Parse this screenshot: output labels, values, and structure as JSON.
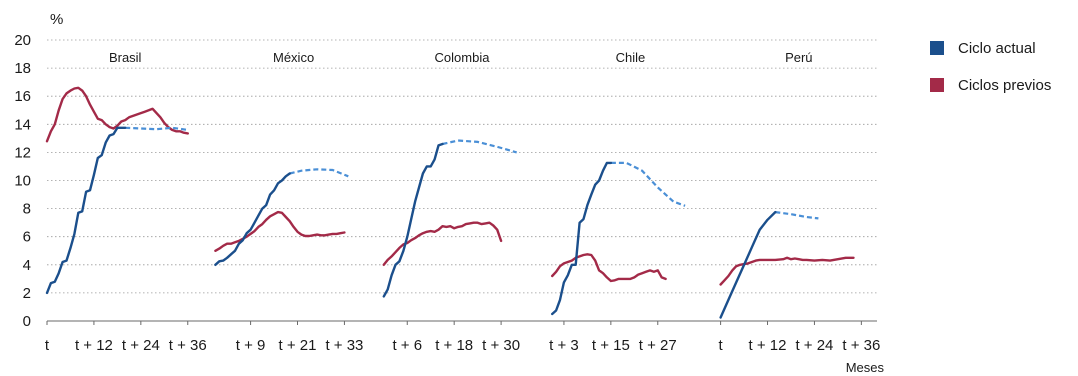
{
  "chart_data": {
    "type": "line",
    "ylabel": "%",
    "xlabel": "Meses",
    "ylim": [
      0,
      20
    ],
    "yticks": [
      "0",
      "2",
      "4",
      "6",
      "8",
      "10",
      "12",
      "14",
      "16",
      "18",
      "20"
    ],
    "grid": "horizontal",
    "legend": {
      "placement": "right",
      "entries": [
        {
          "label": "Ciclo actual",
          "color": "#1b4f8c"
        },
        {
          "label": "Ciclos previos",
          "color": "#a32a48"
        }
      ]
    },
    "colors": {
      "current": "#1b4f8c",
      "projection": "#4a8fd6",
      "previous": "#a32a48"
    },
    "panels": [
      {
        "name": "Brasil",
        "xmax": 40,
        "xticks": [
          {
            "x": 0,
            "label": "t"
          },
          {
            "x": 12,
            "label": "t + 12"
          },
          {
            "x": 24,
            "label": "t + 24"
          },
          {
            "x": 36,
            "label": "t + 36"
          }
        ],
        "current": [
          [
            0,
            2
          ],
          [
            1,
            2.7
          ],
          [
            2,
            2.8
          ],
          [
            3,
            3.4
          ],
          [
            4,
            4.2
          ],
          [
            5,
            4.3
          ],
          [
            6,
            5.2
          ],
          [
            7,
            6.2
          ],
          [
            8,
            7.7
          ],
          [
            9,
            7.8
          ],
          [
            10,
            9.2
          ],
          [
            11,
            9.3
          ],
          [
            12,
            10.4
          ],
          [
            13,
            11.6
          ],
          [
            14,
            11.8
          ],
          [
            15,
            12.7
          ],
          [
            16,
            13.2
          ],
          [
            17,
            13.3
          ],
          [
            18,
            13.75
          ],
          [
            19,
            13.75
          ],
          [
            20,
            13.75
          ]
        ],
        "projection": [
          [
            20,
            13.75
          ],
          [
            24,
            13.7
          ],
          [
            28,
            13.65
          ],
          [
            32,
            13.75
          ],
          [
            36,
            13.6
          ]
        ],
        "previous": [
          [
            0,
            12.8
          ],
          [
            1,
            13.5
          ],
          [
            2,
            14
          ],
          [
            3,
            15
          ],
          [
            4,
            15.8
          ],
          [
            5,
            16.2
          ],
          [
            6,
            16.4
          ],
          [
            7,
            16.55
          ],
          [
            8,
            16.6
          ],
          [
            9,
            16.4
          ],
          [
            10,
            16
          ],
          [
            11,
            15.4
          ],
          [
            12,
            14.9
          ],
          [
            13,
            14.4
          ],
          [
            14,
            14.3
          ],
          [
            15,
            14
          ],
          [
            16,
            13.8
          ],
          [
            17,
            13.7
          ],
          [
            18,
            13.9
          ],
          [
            19,
            14.2
          ],
          [
            20,
            14.3
          ],
          [
            21,
            14.5
          ],
          [
            22,
            14.6
          ],
          [
            23,
            14.7
          ],
          [
            24,
            14.8
          ],
          [
            25,
            14.9
          ],
          [
            26,
            15
          ],
          [
            27,
            15.1
          ],
          [
            28,
            14.8
          ],
          [
            29,
            14.5
          ],
          [
            30,
            14.1
          ],
          [
            31,
            13.8
          ],
          [
            32,
            13.6
          ],
          [
            33,
            13.5
          ],
          [
            34,
            13.5
          ],
          [
            35,
            13.4
          ],
          [
            36,
            13.35
          ]
        ]
      },
      {
        "name": "México",
        "xmax": 40,
        "xticks": [
          {
            "x": 9,
            "label": "t + 9"
          },
          {
            "x": 21,
            "label": "t + 21"
          },
          {
            "x": 33,
            "label": "t + 33"
          }
        ],
        "current": [
          [
            0,
            4
          ],
          [
            1,
            4.25
          ],
          [
            2,
            4.3
          ],
          [
            3,
            4.5
          ],
          [
            4,
            4.75
          ],
          [
            5,
            5
          ],
          [
            6,
            5.5
          ],
          [
            7,
            5.75
          ],
          [
            8,
            6.25
          ],
          [
            9,
            6.5
          ],
          [
            10,
            7
          ],
          [
            11,
            7.5
          ],
          [
            12,
            8
          ],
          [
            13,
            8.25
          ],
          [
            14,
            9
          ],
          [
            15,
            9.3
          ],
          [
            16,
            9.8
          ],
          [
            17,
            10
          ],
          [
            18,
            10.3
          ],
          [
            19,
            10.5
          ]
        ],
        "projection": [
          [
            19,
            10.5
          ],
          [
            22,
            10.7
          ],
          [
            26,
            10.8
          ],
          [
            30,
            10.75
          ],
          [
            34,
            10.3
          ]
        ],
        "previous": [
          [
            0,
            5
          ],
          [
            1,
            5.15
          ],
          [
            2,
            5.35
          ],
          [
            3,
            5.5
          ],
          [
            4,
            5.5
          ],
          [
            5,
            5.6
          ],
          [
            6,
            5.7
          ],
          [
            7,
            5.85
          ],
          [
            8,
            6
          ],
          [
            9,
            6.2
          ],
          [
            10,
            6.4
          ],
          [
            11,
            6.7
          ],
          [
            12,
            6.9
          ],
          [
            13,
            7.2
          ],
          [
            14,
            7.45
          ],
          [
            15,
            7.6
          ],
          [
            16,
            7.75
          ],
          [
            17,
            7.7
          ],
          [
            18,
            7.4
          ],
          [
            19,
            7.1
          ],
          [
            20,
            6.7
          ],
          [
            21,
            6.35
          ],
          [
            22,
            6.15
          ],
          [
            23,
            6.05
          ],
          [
            24,
            6.05
          ],
          [
            25,
            6.1
          ],
          [
            26,
            6.15
          ],
          [
            27,
            6.1
          ],
          [
            28,
            6.1
          ],
          [
            29,
            6.15
          ],
          [
            30,
            6.2
          ],
          [
            31,
            6.2
          ],
          [
            32,
            6.25
          ],
          [
            33,
            6.3
          ]
        ]
      },
      {
        "name": "Colombia",
        "xmax": 40,
        "xticks": [
          {
            "x": 6,
            "label": "t + 6"
          },
          {
            "x": 18,
            "label": "t + 18"
          },
          {
            "x": 30,
            "label": "t + 30"
          }
        ],
        "current": [
          [
            0,
            1.75
          ],
          [
            1,
            2.25
          ],
          [
            2,
            3.25
          ],
          [
            3,
            4
          ],
          [
            4,
            4.25
          ],
          [
            5,
            5
          ],
          [
            6,
            6
          ],
          [
            7,
            7.25
          ],
          [
            8,
            8.5
          ],
          [
            9,
            9.5
          ],
          [
            10,
            10.5
          ],
          [
            11,
            11
          ],
          [
            12,
            11
          ],
          [
            13,
            11.5
          ],
          [
            14,
            12.5
          ],
          [
            15,
            12.6
          ]
        ],
        "projection": [
          [
            15,
            12.6
          ],
          [
            19,
            12.85
          ],
          [
            24,
            12.75
          ],
          [
            29,
            12.4
          ],
          [
            34,
            12
          ]
        ],
        "previous": [
          [
            0,
            4
          ],
          [
            1,
            4.35
          ],
          [
            2,
            4.6
          ],
          [
            3,
            4.9
          ],
          [
            4,
            5.2
          ],
          [
            5,
            5.45
          ],
          [
            6,
            5.55
          ],
          [
            7,
            5.75
          ],
          [
            8,
            5.9
          ],
          [
            9,
            6.1
          ],
          [
            10,
            6.25
          ],
          [
            11,
            6.35
          ],
          [
            12,
            6.4
          ],
          [
            13,
            6.35
          ],
          [
            14,
            6.5
          ],
          [
            15,
            6.75
          ],
          [
            16,
            6.7
          ],
          [
            17,
            6.75
          ],
          [
            18,
            6.6
          ],
          [
            19,
            6.7
          ],
          [
            20,
            6.75
          ],
          [
            21,
            6.9
          ],
          [
            22,
            6.95
          ],
          [
            23,
            7
          ],
          [
            24,
            7
          ],
          [
            25,
            6.9
          ],
          [
            26,
            6.95
          ],
          [
            27,
            7
          ],
          [
            28,
            6.8
          ],
          [
            29,
            6.5
          ],
          [
            30,
            5.7
          ]
        ]
      },
      {
        "name": "Chile",
        "xmax": 40,
        "xticks": [
          {
            "x": 3,
            "label": "t + 3"
          },
          {
            "x": 15,
            "label": "t + 15"
          },
          {
            "x": 27,
            "label": "t + 27"
          }
        ],
        "current": [
          [
            0,
            0.5
          ],
          [
            1,
            0.75
          ],
          [
            2,
            1.5
          ],
          [
            3,
            2.75
          ],
          [
            4,
            3.25
          ],
          [
            5,
            4
          ],
          [
            6,
            4
          ],
          [
            7,
            7
          ],
          [
            8,
            7.25
          ],
          [
            9,
            8.25
          ],
          [
            10,
            9
          ],
          [
            11,
            9.7
          ],
          [
            12,
            10
          ],
          [
            13,
            10.7
          ],
          [
            14,
            11.25
          ],
          [
            15,
            11.25
          ]
        ],
        "projection": [
          [
            15,
            11.25
          ],
          [
            19,
            11.25
          ],
          [
            23,
            10.7
          ],
          [
            27,
            9.5
          ],
          [
            31,
            8.5
          ],
          [
            34,
            8.2
          ]
        ],
        "previous": [
          [
            0,
            3.2
          ],
          [
            1,
            3.5
          ],
          [
            2,
            3.9
          ],
          [
            3,
            4.1
          ],
          [
            4,
            4.2
          ],
          [
            5,
            4.3
          ],
          [
            6,
            4.5
          ],
          [
            7,
            4.6
          ],
          [
            8,
            4.7
          ],
          [
            9,
            4.75
          ],
          [
            10,
            4.7
          ],
          [
            11,
            4.3
          ],
          [
            12,
            3.6
          ],
          [
            13,
            3.4
          ],
          [
            14,
            3.1
          ],
          [
            15,
            2.85
          ],
          [
            16,
            2.9
          ],
          [
            17,
            3
          ],
          [
            18,
            3
          ],
          [
            19,
            3
          ],
          [
            20,
            3
          ],
          [
            21,
            3.1
          ],
          [
            22,
            3.3
          ],
          [
            23,
            3.4
          ],
          [
            24,
            3.5
          ],
          [
            25,
            3.6
          ],
          [
            26,
            3.5
          ],
          [
            27,
            3.6
          ],
          [
            28,
            3.1
          ],
          [
            29,
            3
          ]
        ]
      },
      {
        "name": "Perú",
        "xmax": 40,
        "xticks": [
          {
            "x": 0,
            "label": "t"
          },
          {
            "x": 12,
            "label": "t + 12"
          },
          {
            "x": 24,
            "label": "t + 24"
          },
          {
            "x": 36,
            "label": "t + 36"
          }
        ],
        "current": [
          [
            0,
            0.25
          ],
          [
            2,
            1.5
          ],
          [
            4,
            2.75
          ],
          [
            6,
            4
          ],
          [
            8,
            5.25
          ],
          [
            10,
            6.5
          ],
          [
            12,
            7.2
          ],
          [
            14,
            7.75
          ]
        ],
        "projection": [
          [
            14,
            7.75
          ],
          [
            18,
            7.6
          ],
          [
            22,
            7.4
          ],
          [
            25,
            7.3
          ]
        ],
        "previous": [
          [
            0,
            2.6
          ],
          [
            1,
            2.9
          ],
          [
            2,
            3.2
          ],
          [
            3,
            3.6
          ],
          [
            4,
            3.9
          ],
          [
            5,
            4
          ],
          [
            6,
            4.05
          ],
          [
            7,
            4.1
          ],
          [
            8,
            4.2
          ],
          [
            9,
            4.3
          ],
          [
            10,
            4.35
          ],
          [
            12,
            4.35
          ],
          [
            14,
            4.35
          ],
          [
            16,
            4.4
          ],
          [
            17,
            4.5
          ],
          [
            18,
            4.4
          ],
          [
            19,
            4.45
          ],
          [
            20,
            4.4
          ],
          [
            21,
            4.35
          ],
          [
            22,
            4.35
          ],
          [
            24,
            4.3
          ],
          [
            26,
            4.35
          ],
          [
            28,
            4.3
          ],
          [
            30,
            4.4
          ],
          [
            32,
            4.5
          ],
          [
            34,
            4.5
          ]
        ]
      }
    ]
  }
}
